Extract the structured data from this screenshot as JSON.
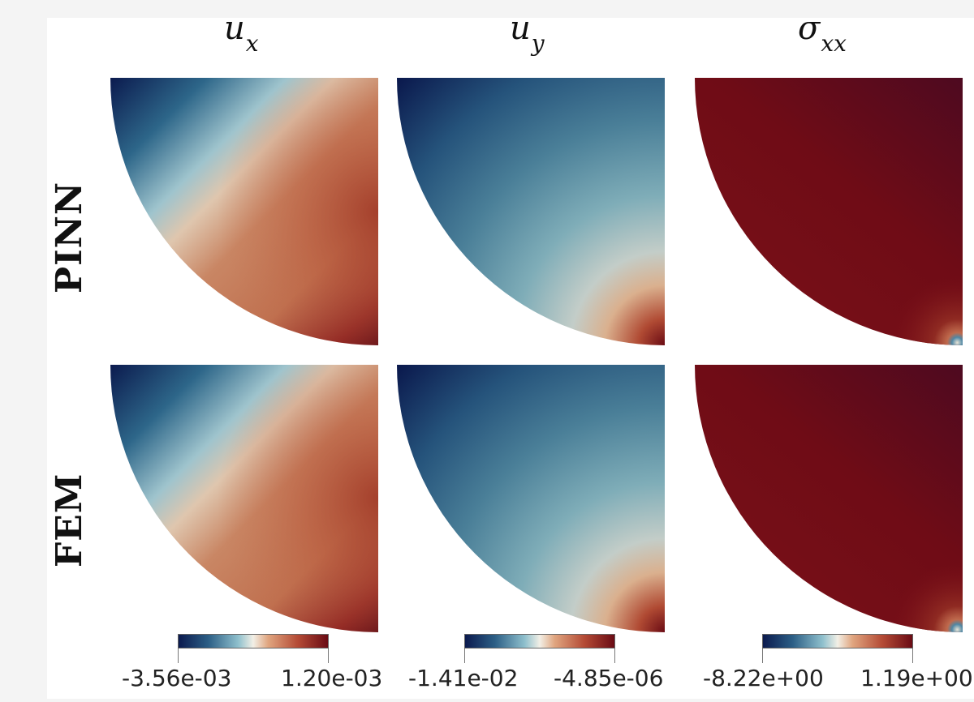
{
  "columns": [
    {
      "title_main": "u",
      "title_sub": "x"
    },
    {
      "title_main": "u",
      "title_sub": "y"
    },
    {
      "title_main": "σ",
      "title_sub": "xx"
    }
  ],
  "rows": [
    "PINN",
    "FEM"
  ],
  "colorbars": [
    {
      "min_label": "-3.56e-03",
      "max_label": "1.20e-03"
    },
    {
      "min_label": "-1.41e-02",
      "max_label": "-4.85e-06"
    },
    {
      "min_label": "-8.22e+00",
      "max_label": "1.19e+00"
    }
  ],
  "colormap": [
    "#0b1a4e",
    "#1f4f7e",
    "#4f87a4",
    "#9dc6d3",
    "#e7e3d6",
    "#e0b08b",
    "#c9704e",
    "#a8372a",
    "#6a0b14"
  ]
}
